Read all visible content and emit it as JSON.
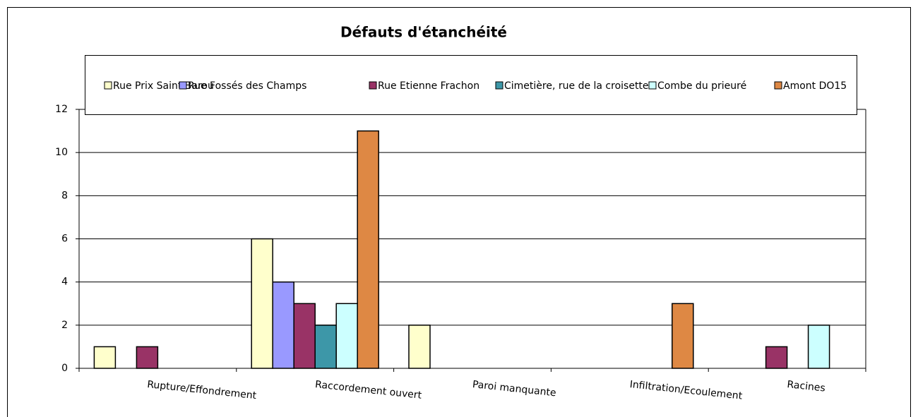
{
  "chart_data": {
    "type": "bar",
    "title": "Défauts d'étanchéité",
    "categories": [
      "Rupture/Effondrement",
      "Raccordement ouvert",
      "Paroi manquante",
      "Infiltration/Ecoulement",
      "Racines"
    ],
    "series": [
      {
        "name": "Rue Prix Saint Barou",
        "color": "#ffffcc",
        "values": [
          1,
          6,
          2,
          0,
          0
        ]
      },
      {
        "name": "Rue Fossés des Champs",
        "color": "#9999ff",
        "values": [
          0,
          4,
          0,
          0,
          0
        ]
      },
      {
        "name": "Rue Etienne Frachon",
        "color": "#993366",
        "values": [
          1,
          3,
          0,
          0,
          1
        ]
      },
      {
        "name": "Cimetière, rue de la croisette",
        "color": "#3d97a8",
        "values": [
          0,
          2,
          0,
          0,
          0
        ]
      },
      {
        "name": "Combe du prieuré",
        "color": "#ccffff",
        "values": [
          0,
          3,
          0,
          0,
          2
        ]
      },
      {
        "name": "Amont DO15",
        "color": "#de8844",
        "values": [
          0,
          11,
          0,
          3,
          0
        ]
      }
    ],
    "ylim": [
      0,
      12
    ],
    "yticks": [
      0,
      2,
      4,
      6,
      8,
      10,
      12
    ],
    "grid": true,
    "legend": "top"
  }
}
